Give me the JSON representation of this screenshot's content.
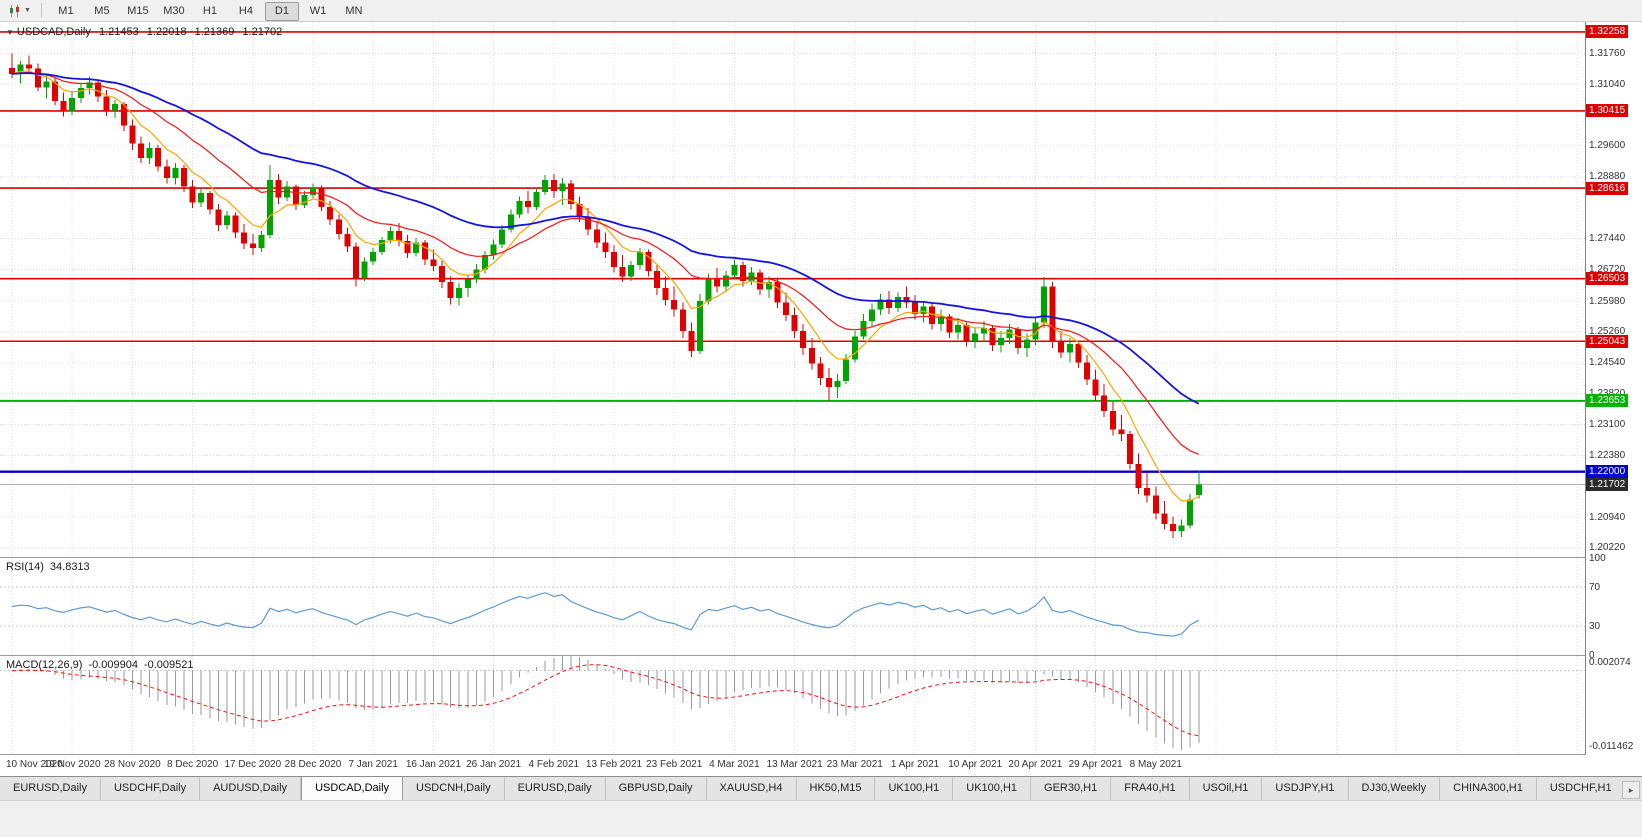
{
  "glyphs": {
    "collapse": "▼",
    "caret": "▼",
    "tab_scroll": "▸"
  },
  "colors": {
    "candle_up": "#00a400",
    "candle_down": "#e10000",
    "grid": "#dcdcdc",
    "bid_line": "#b4b4b4"
  },
  "toolbar": {
    "timeframes": [
      "M1",
      "M5",
      "M15",
      "M30",
      "H1",
      "H4",
      "D1",
      "W1",
      "MN"
    ],
    "active_timeframe": "D1"
  },
  "chart_header": {
    "symbol": "USDCAD,Daily",
    "open": "1.21453",
    "high": "1.22018",
    "low": "1.21369",
    "close": "1.21702"
  },
  "price_axis": {
    "labels": [
      "1.31760",
      "1.31040",
      "1.29600",
      "1.28880",
      "1.27440",
      "1.26720",
      "1.25980",
      "1.25260",
      "1.24540",
      "1.23820",
      "1.23100",
      "1.22380",
      "1.20940",
      "1.20220"
    ]
  },
  "current_price": {
    "label": "1.21702",
    "price": 1.21702,
    "badge_color": "#2b2b2b"
  },
  "rsi": {
    "label": "RSI(14)",
    "value": "34.8313",
    "period": 14,
    "levels": [
      70,
      30
    ],
    "scale": {
      "min": 0,
      "max": 100
    },
    "axis_labels": [
      {
        "v": 100,
        "text": "100"
      },
      {
        "v": 70,
        "text": "70"
      },
      {
        "v": 30,
        "text": "30"
      },
      {
        "v": 0,
        "text": "0"
      }
    ],
    "color": "#5b9bd5"
  },
  "macd": {
    "label": "MACD(12,26,9)",
    "main_value": "-0.009904",
    "signal_value": "-0.009521",
    "fast": 12,
    "slow": 26,
    "signal_period": 9,
    "scale": {
      "min": -0.0127,
      "max": 0.00225
    },
    "axis_labels": [
      {
        "v": 0.002074,
        "text": "0.002074"
      },
      {
        "v": -0.011462,
        "text": "-0.011462"
      }
    ],
    "hist_color": "#9a9a9a",
    "signal_color": "#ff1010"
  },
  "tabs": {
    "items": [
      "EURUSD,Daily",
      "USDCHF,Daily",
      "AUDUSD,Daily",
      "USDCAD,Daily",
      "USDCNH,Daily",
      "EURUSD,Daily",
      "GBPUSD,Daily",
      "XAUUSD,H4",
      "HK50,M15",
      "UK100,H1",
      "UK100,H1",
      "GER30,H1",
      "FRA40,H1",
      "USOil,H1",
      "USDJPY,H1",
      "DJ30,Weekly",
      "CHINA300,H1",
      "USDCHF,H1"
    ],
    "active_index": 3
  },
  "chart_data": {
    "type": "candlestick",
    "symbol": "USDCAD",
    "timeframe": "Daily",
    "price_range": {
      "min": 1.2001,
      "max": 1.3249
    },
    "ticks_every_n_candles": 7,
    "x_tick_labels": [
      "10 Nov 2020",
      "19 Nov 2020",
      "28 Nov 2020",
      "8 Dec 2020",
      "17 Dec 2020",
      "28 Dec 2020",
      "7 Jan 2021",
      "16 Jan 2021",
      "26 Jan 2021",
      "4 Feb 2021",
      "13 Feb 2021",
      "23 Feb 2021",
      "4 Mar 2021",
      "13 Mar 2021",
      "23 Mar 2021",
      "1 Apr 2021",
      "10 Apr 2021",
      "20 Apr 2021",
      "29 Apr 2021",
      "8 May 2021"
    ],
    "horizontal_lines": [
      {
        "price": 1.32258,
        "label": "1.32258",
        "color": "#dd0000",
        "thickness": 1.6,
        "kind": "resistance"
      },
      {
        "price": 1.30415,
        "label": "1.30415",
        "color": "#dd0000",
        "thickness": 1.6,
        "kind": "resistance"
      },
      {
        "price": 1.28616,
        "label": "1.28616",
        "color": "#dd0000",
        "thickness": 1.6,
        "kind": "resistance"
      },
      {
        "price": 1.26503,
        "label": "1.26503",
        "color": "#dd0000",
        "thickness": 1.6,
        "kind": "resistance"
      },
      {
        "price": 1.25043,
        "label": "1.25043",
        "color": "#dd0000",
        "thickness": 1.6,
        "kind": "resistance"
      },
      {
        "price": 1.23653,
        "label": "1.23653",
        "color": "#00b400",
        "thickness": 2,
        "kind": "support"
      },
      {
        "price": 1.22,
        "label": "1.22000",
        "color": "#0000cc",
        "thickness": 2.4,
        "kind": "support"
      }
    ],
    "overlays": [
      {
        "name": "ma-fast",
        "period": 7,
        "color": "#ffa500",
        "width": 1.2
      },
      {
        "name": "ma-medium",
        "period": 18,
        "color": "#ff1010",
        "width": 1.2
      },
      {
        "name": "ma-slow",
        "period": 38,
        "color": "#1515dd",
        "width": 1.8
      }
    ],
    "candles_ohlc": [
      [
        1.3142,
        1.3176,
        1.3118,
        1.3128
      ],
      [
        1.3128,
        1.3158,
        1.3105,
        1.315
      ],
      [
        1.315,
        1.3171,
        1.3132,
        1.314
      ],
      [
        1.314,
        1.3152,
        1.3088,
        1.3096
      ],
      [
        1.3096,
        1.3125,
        1.307,
        1.311
      ],
      [
        1.311,
        1.3118,
        1.3055,
        1.3065
      ],
      [
        1.3065,
        1.3085,
        1.3028,
        1.304
      ],
      [
        1.304,
        1.3088,
        1.3032,
        1.3072
      ],
      [
        1.3072,
        1.3105,
        1.306,
        1.3095
      ],
      [
        1.3095,
        1.3122,
        1.308,
        1.3108
      ],
      [
        1.3108,
        1.3115,
        1.3062,
        1.3075
      ],
      [
        1.3075,
        1.309,
        1.303,
        1.3042
      ],
      [
        1.3042,
        1.3068,
        1.3025,
        1.3058
      ],
      [
        1.3058,
        1.3062,
        1.2995,
        1.3008
      ],
      [
        1.3008,
        1.3022,
        1.295,
        1.2965
      ],
      [
        1.2965,
        1.2982,
        1.292,
        1.2932
      ],
      [
        1.2932,
        1.2968,
        1.2918,
        1.2955
      ],
      [
        1.2955,
        1.2962,
        1.29,
        1.2912
      ],
      [
        1.2912,
        1.2928,
        1.2872,
        1.2885
      ],
      [
        1.2885,
        1.292,
        1.287,
        1.2908
      ],
      [
        1.2908,
        1.2915,
        1.2852,
        1.2865
      ],
      [
        1.2865,
        1.288,
        1.2815,
        1.2828
      ],
      [
        1.2828,
        1.2862,
        1.2818,
        1.285
      ],
      [
        1.285,
        1.2855,
        1.28,
        1.2812
      ],
      [
        1.2812,
        1.2825,
        1.2762,
        1.2775
      ],
      [
        1.2775,
        1.2808,
        1.2765,
        1.2798
      ],
      [
        1.2798,
        1.2805,
        1.2745,
        1.2758
      ],
      [
        1.2758,
        1.2778,
        1.272,
        1.2732
      ],
      [
        1.2732,
        1.2755,
        1.2705,
        1.2722
      ],
      [
        1.2722,
        1.2762,
        1.2712,
        1.2752
      ],
      [
        1.2752,
        1.2915,
        1.2745,
        1.288
      ],
      [
        1.288,
        1.2895,
        1.2825,
        1.284
      ],
      [
        1.284,
        1.2878,
        1.2832,
        1.2865
      ],
      [
        1.2865,
        1.287,
        1.281,
        1.2822
      ],
      [
        1.2822,
        1.2855,
        1.2815,
        1.2845
      ],
      [
        1.2845,
        1.2872,
        1.2838,
        1.2862
      ],
      [
        1.2862,
        1.2868,
        1.2808,
        1.2818
      ],
      [
        1.2818,
        1.2832,
        1.2775,
        1.2788
      ],
      [
        1.2788,
        1.28,
        1.2742,
        1.2755
      ],
      [
        1.2755,
        1.2768,
        1.2712,
        1.2725
      ],
      [
        1.2725,
        1.2735,
        1.2632,
        1.2652
      ],
      [
        1.2652,
        1.27,
        1.2645,
        1.269
      ],
      [
        1.269,
        1.2722,
        1.2682,
        1.2712
      ],
      [
        1.2712,
        1.2748,
        1.2705,
        1.274
      ],
      [
        1.274,
        1.2772,
        1.2732,
        1.2762
      ],
      [
        1.2762,
        1.278,
        1.2725,
        1.2738
      ],
      [
        1.2738,
        1.2752,
        1.2698,
        1.271
      ],
      [
        1.271,
        1.2745,
        1.2702,
        1.2735
      ],
      [
        1.2735,
        1.274,
        1.2682,
        1.2695
      ],
      [
        1.2695,
        1.2718,
        1.2668,
        1.268
      ],
      [
        1.268,
        1.2692,
        1.2628,
        1.2642
      ],
      [
        1.2642,
        1.2655,
        1.259,
        1.2605
      ],
      [
        1.2605,
        1.264,
        1.2588,
        1.2628
      ],
      [
        1.2628,
        1.2658,
        1.2608,
        1.2648
      ],
      [
        1.2648,
        1.2685,
        1.264,
        1.2672
      ],
      [
        1.2672,
        1.2715,
        1.2662,
        1.2705
      ],
      [
        1.2705,
        1.2742,
        1.2695,
        1.273
      ],
      [
        1.273,
        1.2775,
        1.2722,
        1.2765
      ],
      [
        1.2765,
        1.2812,
        1.2758,
        1.28
      ],
      [
        1.28,
        1.2842,
        1.2792,
        1.2832
      ],
      [
        1.2832,
        1.2855,
        1.2802,
        1.2818
      ],
      [
        1.2818,
        1.2862,
        1.281,
        1.2852
      ],
      [
        1.2852,
        1.2892,
        1.2845,
        1.288
      ],
      [
        1.288,
        1.2895,
        1.2838,
        1.2855
      ],
      [
        1.2855,
        1.2885,
        1.2822,
        1.2872
      ],
      [
        1.2872,
        1.288,
        1.2812,
        1.2825
      ],
      [
        1.2825,
        1.2842,
        1.2782,
        1.2795
      ],
      [
        1.2795,
        1.2815,
        1.2752,
        1.2765
      ],
      [
        1.2765,
        1.2785,
        1.2722,
        1.2735
      ],
      [
        1.2735,
        1.2758,
        1.2698,
        1.2712
      ],
      [
        1.2712,
        1.2728,
        1.2665,
        1.2678
      ],
      [
        1.2678,
        1.2705,
        1.2642,
        1.2655
      ],
      [
        1.2655,
        1.2692,
        1.2645,
        1.2682
      ],
      [
        1.2682,
        1.2722,
        1.2672,
        1.2712
      ],
      [
        1.2712,
        1.2718,
        1.2655,
        1.2668
      ],
      [
        1.2668,
        1.2682,
        1.2612,
        1.2628
      ],
      [
        1.2628,
        1.2655,
        1.2588,
        1.26
      ],
      [
        1.26,
        1.2632,
        1.2562,
        1.2578
      ],
      [
        1.2578,
        1.2595,
        1.2512,
        1.2528
      ],
      [
        1.2528,
        1.2548,
        1.2468,
        1.2482
      ],
      [
        1.2482,
        1.2615,
        1.2475,
        1.2598
      ],
      [
        1.2598,
        1.2662,
        1.259,
        1.2648
      ],
      [
        1.2648,
        1.2675,
        1.2618,
        1.2632
      ],
      [
        1.2632,
        1.2668,
        1.2622,
        1.2658
      ],
      [
        1.2658,
        1.2695,
        1.265,
        1.2682
      ],
      [
        1.2682,
        1.269,
        1.2632,
        1.2645
      ],
      [
        1.2645,
        1.2678,
        1.2636,
        1.2665
      ],
      [
        1.2665,
        1.2672,
        1.2612,
        1.2625
      ],
      [
        1.2625,
        1.2655,
        1.2605,
        1.2642
      ],
      [
        1.2642,
        1.2648,
        1.2582,
        1.2595
      ],
      [
        1.2595,
        1.2618,
        1.2552,
        1.2565
      ],
      [
        1.2565,
        1.2582,
        1.2512,
        1.2528
      ],
      [
        1.2528,
        1.2545,
        1.2472,
        1.2488
      ],
      [
        1.2488,
        1.2512,
        1.2438,
        1.2452
      ],
      [
        1.2452,
        1.2468,
        1.2402,
        1.2418
      ],
      [
        1.2418,
        1.2442,
        1.2365,
        1.2398
      ],
      [
        1.2398,
        1.2428,
        1.2372,
        1.2412
      ],
      [
        1.2412,
        1.2475,
        1.2405,
        1.2462
      ],
      [
        1.2462,
        1.2528,
        1.2455,
        1.2515
      ],
      [
        1.2515,
        1.2568,
        1.2508,
        1.2552
      ],
      [
        1.2552,
        1.2592,
        1.2538,
        1.2578
      ],
      [
        1.2578,
        1.2615,
        1.2565,
        1.2602
      ],
      [
        1.2602,
        1.2622,
        1.2568,
        1.2582
      ],
      [
        1.2582,
        1.2618,
        1.2572,
        1.2608
      ],
      [
        1.2608,
        1.2632,
        1.2582,
        1.2595
      ],
      [
        1.2595,
        1.2612,
        1.2555,
        1.2568
      ],
      [
        1.2568,
        1.2598,
        1.2548,
        1.2585
      ],
      [
        1.2585,
        1.2592,
        1.2532,
        1.2545
      ],
      [
        1.2545,
        1.2578,
        1.2528,
        1.2562
      ],
      [
        1.2562,
        1.2568,
        1.2512,
        1.2525
      ],
      [
        1.2525,
        1.2558,
        1.2508,
        1.2542
      ],
      [
        1.2542,
        1.2548,
        1.2492,
        1.2505
      ],
      [
        1.2505,
        1.2538,
        1.2488,
        1.2522
      ],
      [
        1.2522,
        1.2552,
        1.2502,
        1.2535
      ],
      [
        1.2535,
        1.2542,
        1.2482,
        1.2495
      ],
      [
        1.2495,
        1.2528,
        1.2478,
        1.2512
      ],
      [
        1.2512,
        1.2545,
        1.2498,
        1.2532
      ],
      [
        1.2532,
        1.2538,
        1.2475,
        1.2488
      ],
      [
        1.2488,
        1.2522,
        1.2468,
        1.2508
      ],
      [
        1.2508,
        1.2562,
        1.2495,
        1.2548
      ],
      [
        1.2548,
        1.2654,
        1.2535,
        1.2632
      ],
      [
        1.2632,
        1.2642,
        1.2488,
        1.2502
      ],
      [
        1.2502,
        1.2528,
        1.2465,
        1.2478
      ],
      [
        1.2478,
        1.2512,
        1.2455,
        1.2498
      ],
      [
        1.2498,
        1.2505,
        1.2442,
        1.2455
      ],
      [
        1.2455,
        1.2472,
        1.2402,
        1.2415
      ],
      [
        1.2415,
        1.2438,
        1.2365,
        1.2378
      ],
      [
        1.2378,
        1.2405,
        1.2328,
        1.2342
      ],
      [
        1.2342,
        1.2362,
        1.2285,
        1.2298
      ],
      [
        1.2298,
        1.2332,
        1.2272,
        1.2288
      ],
      [
        1.2288,
        1.2295,
        1.2205,
        1.2218
      ],
      [
        1.2218,
        1.2242,
        1.2148,
        1.2162
      ],
      [
        1.2162,
        1.2198,
        1.2128,
        1.2145
      ],
      [
        1.2145,
        1.2165,
        1.2088,
        1.2102
      ],
      [
        1.2102,
        1.2132,
        1.2065,
        1.2078
      ],
      [
        1.2078,
        1.2095,
        1.2045,
        1.2062
      ],
      [
        1.2062,
        1.2088,
        1.2048,
        1.2075
      ],
      [
        1.2075,
        1.2148,
        1.2068,
        1.2135
      ],
      [
        1.21453,
        1.22018,
        1.21369,
        1.21702
      ]
    ]
  }
}
